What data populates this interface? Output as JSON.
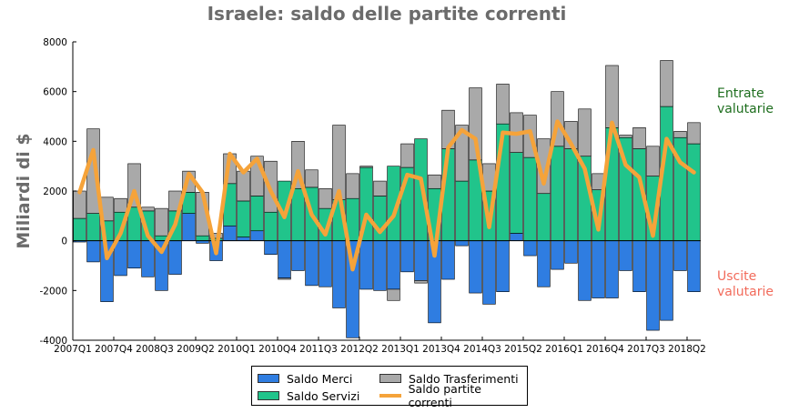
{
  "chart_data": {
    "type": "bar",
    "title": "Israele: saldo delle partite correnti",
    "ylabel": "Miliardi di $",
    "ylim": [
      -4000,
      8000
    ],
    "yticks": [
      -4000,
      -2000,
      0,
      2000,
      4000,
      6000,
      8000
    ],
    "xtick_labels": [
      "2007Q1",
      "2007Q4",
      "2008Q3",
      "2009Q2",
      "2010Q1",
      "2010Q4",
      "2011Q3",
      "2012Q2",
      "2013Q1",
      "2013Q4",
      "2014Q3",
      "2015Q2",
      "2016Q1",
      "2016Q4",
      "2017Q3",
      "2018Q2"
    ],
    "categories": [
      "2007Q1",
      "2007Q2",
      "2007Q3",
      "2007Q4",
      "2008Q1",
      "2008Q2",
      "2008Q3",
      "2008Q4",
      "2009Q1",
      "2009Q2",
      "2009Q3",
      "2009Q4",
      "2010Q1",
      "2010Q2",
      "2010Q3",
      "2010Q4",
      "2011Q1",
      "2011Q2",
      "2011Q3",
      "2011Q4",
      "2012Q1",
      "2012Q2",
      "2012Q3",
      "2012Q4",
      "2013Q1",
      "2013Q2",
      "2013Q3",
      "2013Q4",
      "2014Q1",
      "2014Q2",
      "2014Q3",
      "2014Q4",
      "2015Q1",
      "2015Q2",
      "2015Q3",
      "2015Q4",
      "2016Q1",
      "2016Q2",
      "2016Q3",
      "2016Q4",
      "2017Q1",
      "2017Q2",
      "2017Q3",
      "2017Q4",
      "2018Q1",
      "2018Q2"
    ],
    "series": [
      {
        "name": "Saldo Merci",
        "color": "#2f7de1",
        "values": [
          -50,
          -850,
          -2450,
          -1400,
          -1100,
          -1450,
          -2000,
          -1350,
          1100,
          -100,
          -800,
          600,
          150,
          400,
          -550,
          -1500,
          -1200,
          -1800,
          -1850,
          -2700,
          -3900,
          -1950,
          -2000,
          -1950,
          -1250,
          -1600,
          -3300,
          -1550,
          -200,
          -2100,
          -2550,
          -2050,
          300,
          -600,
          -1850,
          -1150,
          -900,
          -2400,
          -2300,
          -2300,
          -1200,
          -2050,
          -3600,
          -3200,
          -1200,
          -2050
        ]
      },
      {
        "name": "Saldo Servizi",
        "color": "#21c48b",
        "values": [
          900,
          1100,
          800,
          1150,
          1350,
          1200,
          200,
          1200,
          850,
          200,
          100,
          1700,
          1450,
          1400,
          1150,
          2400,
          2100,
          2150,
          1300,
          1650,
          1700,
          2950,
          1800,
          3000,
          2950,
          4100,
          2100,
          3700,
          2400,
          3250,
          2000,
          4700,
          3250,
          3350,
          1900,
          3800,
          3700,
          3400,
          2050,
          4550,
          4150,
          3700,
          2600,
          5400,
          4150,
          3900
        ]
      },
      {
        "name": "Saldo Trasferimenti",
        "color": "#a9a9a9",
        "values": [
          1100,
          3400,
          950,
          550,
          1750,
          150,
          1100,
          800,
          850,
          1750,
          200,
          1200,
          1200,
          1600,
          2050,
          -50,
          1900,
          700,
          800,
          3000,
          1000,
          50,
          600,
          -450,
          950,
          -100,
          550,
          1550,
          2250,
          2900,
          1100,
          1600,
          1600,
          1700,
          2200,
          2200,
          1100,
          1900,
          650,
          2500,
          100,
          850,
          1200,
          1850,
          250,
          850
        ]
      },
      {
        "name": "Saldo partite correnti",
        "color": "#f5a33a",
        "values": [
          1950,
          3650,
          -700,
          300,
          2000,
          200,
          -450,
          650,
          2700,
          1950,
          -500,
          3500,
          2750,
          3300,
          2000,
          950,
          2800,
          1050,
          250,
          2000,
          -1150,
          1050,
          350,
          1000,
          2650,
          2500,
          -600,
          3750,
          4450,
          4100,
          550,
          4350,
          4300,
          4400,
          2300,
          4800,
          3900,
          2900,
          450,
          4750,
          3050,
          2550,
          200,
          4100,
          3150,
          2750
        ]
      }
    ],
    "annotations": [
      {
        "text": "Entrate\nvalutarie",
        "color": "#1e6e1e"
      },
      {
        "text": "Uscite\nvalutarie",
        "color": "#f26b5b"
      }
    ],
    "legend": {
      "position": "bottom-center",
      "ncols": 2
    },
    "grid": false
  }
}
